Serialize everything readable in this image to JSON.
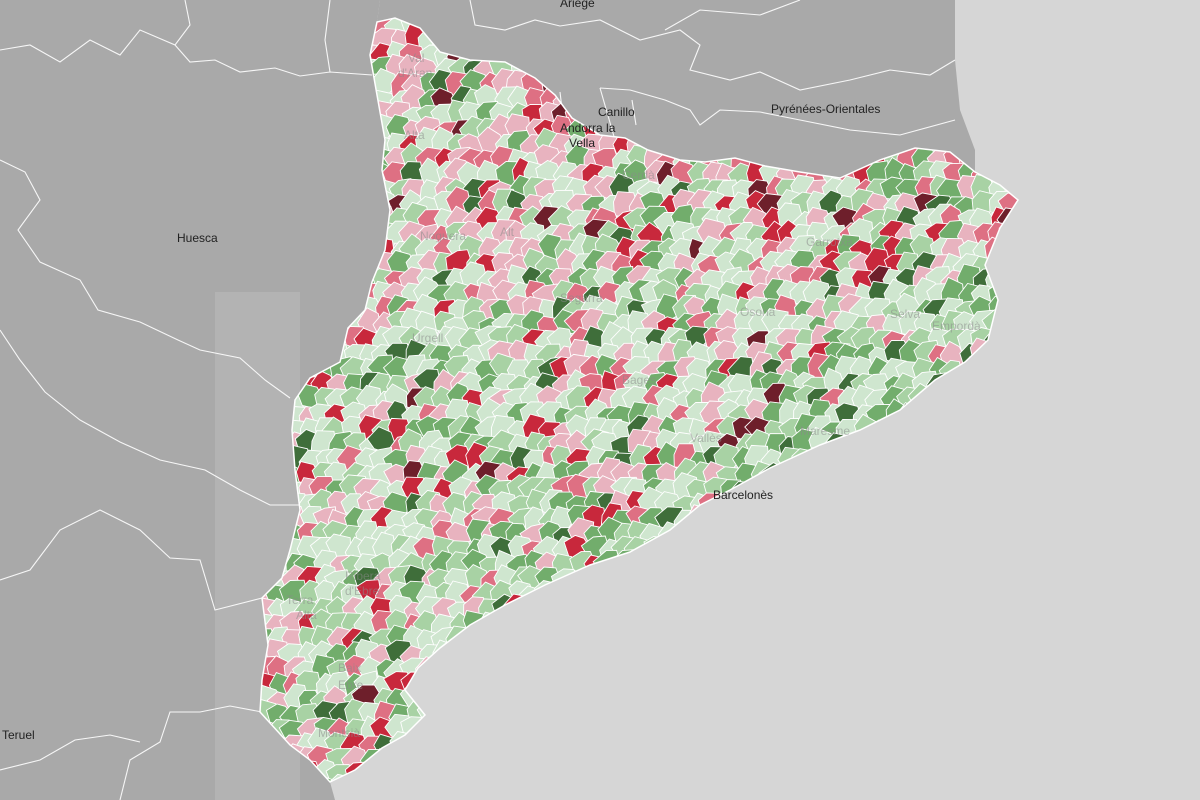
{
  "map": {
    "type": "choropleth",
    "region": "Catalonia municipalities",
    "colors": {
      "sea": "#d6d6d6",
      "land_outside": "#a9a9a9",
      "land_outside_light": "#b3b3b3",
      "border": "#ffffff",
      "palette": [
        "#6e1f2b",
        "#c8283c",
        "#de7083",
        "#e8b3bf",
        "#cfe6cf",
        "#a8d2a4",
        "#72ad6c",
        "#3f6e3a"
      ]
    },
    "labels": {
      "ariege": "Ariège",
      "canillo": "Canillo",
      "andorra_line1": "Andorra la",
      "andorra_line2": "Vella",
      "pyrenees_orientales": "Pyrénées-Orientales",
      "huesca": "Huesca",
      "teruel": "Teruel"
    },
    "comarca_labels": {
      "val_daran_1": "Val",
      "val_daran_2": "d'Aran",
      "alta": "Alta",
      "alt": "Alt",
      "cerdanya": "Cerdà",
      "segarra": "Segarra",
      "osona": "Osona",
      "emporda": "Empordà",
      "selva": "Selva",
      "bages": "Bages",
      "valles": "Vallès",
      "maresme": "Maresme",
      "barcelones": "Barcelonès",
      "ribera_1": "Ribera",
      "ribera_2": "d'Ebre",
      "baix_ebre_1": "Baix",
      "baix_ebre_2": "Ebre",
      "montsia": "Montsià",
      "terra_alta_1": "Terra",
      "terra_alta_2": "Alta",
      "garrotxa": "Garrotxa",
      "noguera": "Noguera",
      "urgell": "Urgell"
    }
  }
}
